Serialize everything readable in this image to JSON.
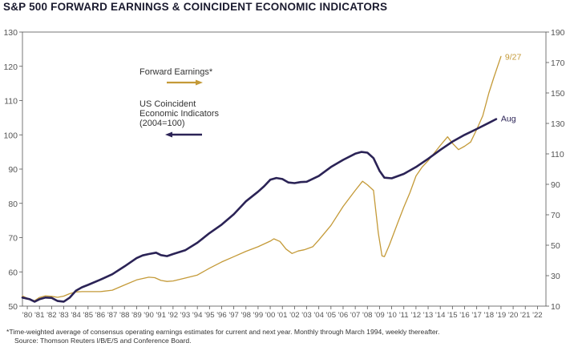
{
  "chart_data": {
    "type": "line",
    "title": "S&P 500 FORWARD EARNINGS & COINCIDENT ECONOMIC INDICATORS",
    "x_ticks": [
      "'80",
      "'81",
      "'82",
      "'83",
      "'84",
      "'85",
      "'86",
      "'87",
      "'88",
      "'89",
      "'90",
      "'91",
      "'92",
      "'93",
      "'94",
      "'95",
      "'96",
      "'97",
      "'98",
      "'99",
      "'00",
      "'01",
      "'02",
      "'03",
      "'04",
      "'05",
      "'06",
      "'07",
      "'08",
      "'09",
      "'10",
      "'11",
      "'12",
      "'13",
      "'14",
      "'15",
      "'16",
      "'17",
      "'18",
      "'19",
      "'20",
      "'21",
      "'22"
    ],
    "xlim": [
      1979.6,
      2022.7
    ],
    "left_axis": {
      "lim": [
        50,
        130
      ],
      "ticks": [
        50,
        60,
        70,
        80,
        90,
        100,
        110,
        120,
        130
      ]
    },
    "right_axis": {
      "lim": [
        10,
        190
      ],
      "ticks": [
        10,
        30,
        50,
        70,
        90,
        110,
        130,
        150,
        170,
        190
      ]
    },
    "legend": {
      "forward_label": "Forward Earnings*",
      "coincident_label_lines": [
        "US Coincident",
        "Economic Indicators",
        "(2004=100)"
      ]
    },
    "series": [
      {
        "name": "US Coincident Economic Indicators (2004=100)",
        "axis": "left",
        "color": "#2b2356",
        "end_label": "Aug",
        "points": [
          [
            1979.6,
            52.5
          ],
          [
            1980.2,
            52.0
          ],
          [
            1980.6,
            51.3
          ],
          [
            1981.0,
            52.0
          ],
          [
            1981.5,
            52.5
          ],
          [
            1982.0,
            52.4
          ],
          [
            1982.5,
            51.5
          ],
          [
            1983.0,
            51.3
          ],
          [
            1983.5,
            52.5
          ],
          [
            1984.0,
            54.5
          ],
          [
            1984.5,
            55.5
          ],
          [
            1985.0,
            56.2
          ],
          [
            1986.0,
            57.7
          ],
          [
            1987.0,
            59.3
          ],
          [
            1988.0,
            61.6
          ],
          [
            1989.0,
            64.0
          ],
          [
            1989.5,
            64.8
          ],
          [
            1990.0,
            65.2
          ],
          [
            1990.6,
            65.6
          ],
          [
            1991.0,
            64.9
          ],
          [
            1991.5,
            64.6
          ],
          [
            1992.0,
            65.2
          ],
          [
            1993.0,
            66.3
          ],
          [
            1994.0,
            68.5
          ],
          [
            1995.0,
            71.3
          ],
          [
            1996.0,
            73.8
          ],
          [
            1997.0,
            76.8
          ],
          [
            1998.0,
            80.6
          ],
          [
            1999.0,
            83.4
          ],
          [
            1999.5,
            85.0
          ],
          [
            2000.0,
            86.9
          ],
          [
            2000.5,
            87.4
          ],
          [
            2001.0,
            87.1
          ],
          [
            2001.5,
            86.1
          ],
          [
            2002.0,
            85.9
          ],
          [
            2002.5,
            86.2
          ],
          [
            2003.0,
            86.3
          ],
          [
            2004.0,
            88.0
          ],
          [
            2005.0,
            90.6
          ],
          [
            2006.0,
            92.7
          ],
          [
            2007.0,
            94.5
          ],
          [
            2007.5,
            95.0
          ],
          [
            2008.0,
            94.8
          ],
          [
            2008.5,
            93.2
          ],
          [
            2009.0,
            89.5
          ],
          [
            2009.4,
            87.5
          ],
          [
            2010.0,
            87.3
          ],
          [
            2011.0,
            88.6
          ],
          [
            2012.0,
            90.6
          ],
          [
            2013.0,
            93.0
          ],
          [
            2014.0,
            95.6
          ],
          [
            2015.0,
            98.0
          ],
          [
            2016.0,
            100.0
          ],
          [
            2017.0,
            101.7
          ],
          [
            2018.0,
            103.5
          ],
          [
            2018.6,
            104.6
          ]
        ]
      },
      {
        "name": "Forward Earnings*",
        "axis": "right",
        "color": "#c49a38",
        "end_label": "9/27",
        "points": [
          [
            1979.6,
            16.7
          ],
          [
            1980.2,
            14.4
          ],
          [
            1980.6,
            13.6
          ],
          [
            1981.0,
            15.7
          ],
          [
            1981.5,
            16.8
          ],
          [
            1982.0,
            16.4
          ],
          [
            1982.5,
            15.8
          ],
          [
            1983.0,
            16.6
          ],
          [
            1983.5,
            18.2
          ],
          [
            1984.0,
            19.3
          ],
          [
            1984.5,
            19.5
          ],
          [
            1985.0,
            19.5
          ],
          [
            1986.0,
            19.5
          ],
          [
            1987.0,
            20.5
          ],
          [
            1988.0,
            23.9
          ],
          [
            1989.0,
            27.2
          ],
          [
            1990.0,
            29.0
          ],
          [
            1990.5,
            28.7
          ],
          [
            1991.0,
            26.9
          ],
          [
            1991.5,
            26.2
          ],
          [
            1992.0,
            26.5
          ],
          [
            1993.0,
            28.4
          ],
          [
            1994.0,
            30.4
          ],
          [
            1995.0,
            34.9
          ],
          [
            1996.0,
            39.0
          ],
          [
            1997.0,
            42.5
          ],
          [
            1998.0,
            46.0
          ],
          [
            1999.0,
            49.0
          ],
          [
            2000.0,
            52.7
          ],
          [
            2000.3,
            54.2
          ],
          [
            2000.8,
            52.5
          ],
          [
            2001.3,
            47.5
          ],
          [
            2001.8,
            44.6
          ],
          [
            2002.3,
            46.2
          ],
          [
            2002.8,
            47.0
          ],
          [
            2003.5,
            49.0
          ],
          [
            2004.0,
            53.5
          ],
          [
            2005.0,
            63.0
          ],
          [
            2006.0,
            75.5
          ],
          [
            2007.0,
            86.0
          ],
          [
            2007.6,
            92.0
          ],
          [
            2008.0,
            89.7
          ],
          [
            2008.5,
            86.0
          ],
          [
            2008.9,
            58.0
          ],
          [
            2009.2,
            43.0
          ],
          [
            2009.4,
            42.5
          ],
          [
            2009.8,
            50.0
          ],
          [
            2010.5,
            64.8
          ],
          [
            2011.0,
            75.0
          ],
          [
            2011.5,
            84.5
          ],
          [
            2012.0,
            95.5
          ],
          [
            2012.5,
            101.3
          ],
          [
            2013.0,
            105.5
          ],
          [
            2014.0,
            115.5
          ],
          [
            2014.6,
            121.2
          ],
          [
            2015.0,
            117.0
          ],
          [
            2015.5,
            112.8
          ],
          [
            2016.0,
            115.0
          ],
          [
            2016.5,
            117.8
          ],
          [
            2017.0,
            126.0
          ],
          [
            2017.5,
            135.0
          ],
          [
            2018.0,
            150.0
          ],
          [
            2018.4,
            160.0
          ],
          [
            2018.7,
            167.0
          ],
          [
            2019.0,
            174.0
          ]
        ]
      }
    ]
  },
  "footnote": "*Time-weighted average of consensus operating earnings estimates for current and next year. Monthly through March 1994, weekly thereafter.",
  "source": "Source: Thomson Reuters I/B/E/S and Conference Board."
}
